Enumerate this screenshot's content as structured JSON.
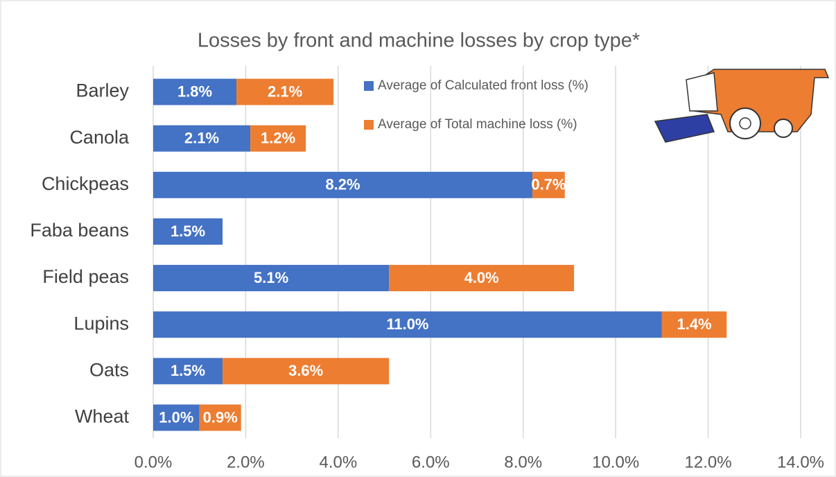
{
  "chart_data": {
    "type": "stacked-barh",
    "title": "Losses by front and machine losses by crop type*",
    "categories": [
      "Barley",
      "Canola",
      "Chickpeas",
      "Faba beans",
      "Field peas",
      "Lupins",
      "Oats",
      "Wheat"
    ],
    "series": [
      {
        "name": "Average of Calculated front loss (%)",
        "color": "#4472c4",
        "values": [
          1.8,
          2.1,
          8.2,
          1.5,
          5.1,
          11.0,
          1.5,
          1.0
        ],
        "value_labels": [
          "1.8%",
          "2.1%",
          "8.2%",
          "1.5%",
          "5.1%",
          "11.0%",
          "1.5%",
          "1.0%"
        ]
      },
      {
        "name": "Average of Total machine loss (%)",
        "color": "#ed7d31",
        "values": [
          2.1,
          1.2,
          0.7,
          null,
          4.0,
          1.4,
          3.6,
          0.9
        ],
        "value_labels": [
          "2.1%",
          "1.2%",
          "0.7%",
          null,
          "4.0%",
          "1.4%",
          "3.6%",
          "0.9%"
        ]
      }
    ],
    "xlim": [
      0,
      14
    ],
    "xticks": [
      {
        "value": 0,
        "label": "0.0%"
      },
      {
        "value": 2,
        "label": "2.0%"
      },
      {
        "value": 4,
        "label": "4.0%"
      },
      {
        "value": 6,
        "label": "6.0%"
      },
      {
        "value": 8,
        "label": "8.0%"
      },
      {
        "value": 10,
        "label": "10.0%"
      },
      {
        "value": 12,
        "label": "12.0%"
      },
      {
        "value": 14,
        "label": "14.0%"
      }
    ],
    "grid": true
  }
}
